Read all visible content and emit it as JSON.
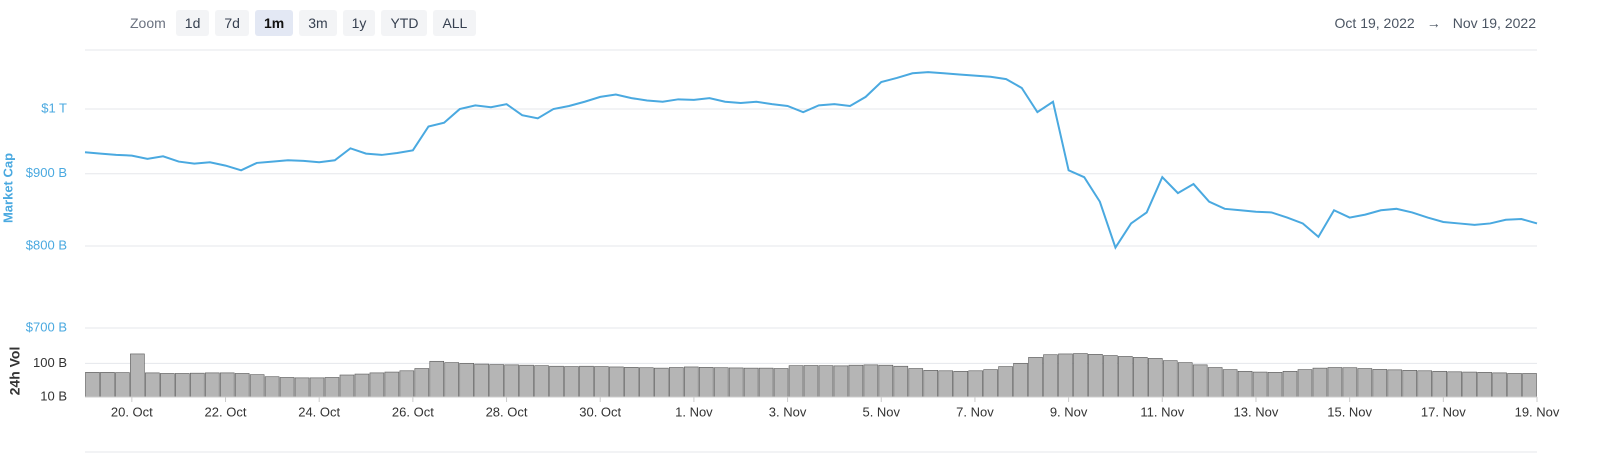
{
  "zoom_label": "Zoom",
  "zoom_buttons": [
    "1d",
    "7d",
    "1m",
    "3m",
    "1y",
    "YTD",
    "ALL"
  ],
  "zoom_selected": "1m",
  "date_range": {
    "from": "Oct 19, 2022",
    "separator": "→",
    "to": "Nov 19, 2022"
  },
  "chart_data": [
    {
      "type": "line",
      "y_label": "Market Cap",
      "log": true,
      "color": "#4aa9e0",
      "grid": true,
      "ylim": [
        700,
        1101
      ],
      "yticks": [
        {
          "value": 700,
          "label": "$700 B"
        },
        {
          "value": 800,
          "label": "$800 B"
        },
        {
          "value": 900,
          "label": "$900 B"
        },
        {
          "value": 1000,
          "label": "$1 T"
        }
      ],
      "values": [
        932,
        930,
        928,
        927,
        922,
        926,
        918,
        915,
        917,
        912,
        905,
        916,
        918,
        920,
        919,
        917,
        920,
        938,
        930,
        928,
        931,
        935,
        972,
        978,
        1000,
        1006,
        1003,
        1008,
        990,
        985,
        1000,
        1005,
        1012,
        1020,
        1024,
        1018,
        1014,
        1012,
        1016,
        1015,
        1018,
        1012,
        1010,
        1012,
        1008,
        1005,
        995,
        1006,
        1008,
        1005,
        1020,
        1045,
        1052,
        1060,
        1062,
        1060,
        1058,
        1056,
        1054,
        1050,
        1035,
        995,
        1012,
        905,
        895,
        860,
        798,
        830,
        845,
        895,
        872,
        885,
        860,
        850,
        848,
        846,
        845,
        838,
        830,
        812,
        848,
        838,
        842,
        848,
        850,
        845,
        838,
        832,
        830,
        828,
        830,
        835,
        836,
        830
      ]
    },
    {
      "type": "bar",
      "y_label": "24h Vol",
      "log": true,
      "color": "#b5b5b5",
      "ylim": [
        10,
        350
      ],
      "yticks": [
        {
          "value": 10,
          "label": "10 B"
        },
        {
          "value": 100,
          "label": "100 B"
        }
      ],
      "xlim": [
        "2022-10-19",
        "2022-11-19"
      ],
      "xticks": [
        {
          "value": "2022-10-20",
          "label": "20. Oct"
        },
        {
          "value": "2022-10-22",
          "label": "22. Oct"
        },
        {
          "value": "2022-10-24",
          "label": "24. Oct"
        },
        {
          "value": "2022-10-26",
          "label": "26. Oct"
        },
        {
          "value": "2022-10-28",
          "label": "28. Oct"
        },
        {
          "value": "2022-10-30",
          "label": "30. Oct"
        },
        {
          "value": "2022-11-01",
          "label": "1. Nov"
        },
        {
          "value": "2022-11-03",
          "label": "3. Nov"
        },
        {
          "value": "2022-11-05",
          "label": "5. Nov"
        },
        {
          "value": "2022-11-07",
          "label": "7. Nov"
        },
        {
          "value": "2022-11-09",
          "label": "9. Nov"
        },
        {
          "value": "2022-11-11",
          "label": "11. Nov"
        },
        {
          "value": "2022-11-13",
          "label": "13. Nov"
        },
        {
          "value": "2022-11-15",
          "label": "15. Nov"
        },
        {
          "value": "2022-11-17",
          "label": "17. Nov"
        },
        {
          "value": "2022-11-19",
          "label": "19. Nov"
        }
      ],
      "values": [
        54,
        54,
        53,
        190,
        52,
        50,
        50,
        51,
        52,
        52,
        50,
        46,
        40,
        38,
        37,
        37,
        38,
        45,
        48,
        52,
        55,
        60,
        70,
        115,
        105,
        100,
        95,
        92,
        90,
        88,
        85,
        82,
        80,
        82,
        80,
        78,
        76,
        74,
        72,
        75,
        78,
        76,
        74,
        73,
        72,
        72,
        70,
        85,
        86,
        85,
        84,
        88,
        90,
        88,
        82,
        70,
        62,
        60,
        58,
        60,
        65,
        80,
        100,
        150,
        180,
        190,
        195,
        185,
        170,
        160,
        150,
        140,
        120,
        105,
        90,
        75,
        65,
        58,
        55,
        54,
        58,
        65,
        72,
        75,
        74,
        70,
        66,
        64,
        62,
        60,
        58,
        56,
        55,
        54,
        52,
        50,
        50
      ]
    }
  ]
}
